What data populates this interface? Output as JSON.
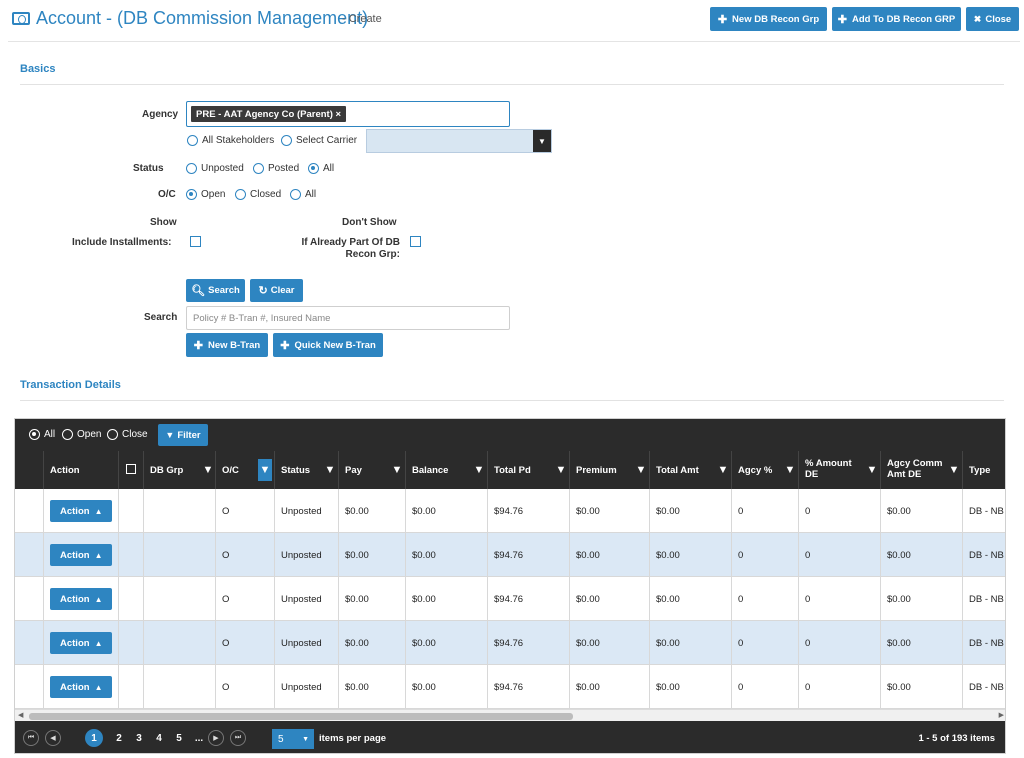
{
  "header": {
    "title": "Account - (DB Commission Management)",
    "subtitle": "- Create",
    "buttons": {
      "new_recon": "New DB Recon Grp",
      "add_recon": "Add To DB Recon GRP",
      "close": "Close"
    }
  },
  "basics": {
    "section_title": "Basics",
    "agency_label": "Agency",
    "agency_tag": "PRE - AAT Agency Co (Parent) ×",
    "stakeholder_options": [
      "All Stakeholders",
      "Select Carrier"
    ],
    "stakeholder_selected": "All Stakeholders",
    "carrier_value": "",
    "status_label": "Status",
    "status_options": [
      "Unposted",
      "Posted",
      "All"
    ],
    "status_selected": "All",
    "oc_label": "O/C",
    "oc_options": [
      "Open",
      "Closed",
      "All"
    ],
    "oc_selected": "Open",
    "show_label": "Show",
    "dont_show_label": "Don't Show",
    "include_installments": "Include Installments:",
    "already_part": "If Already Part Of DB Recon Grp:",
    "search_btn": "Search",
    "clear_btn": "Clear",
    "search_label": "Search",
    "search_placeholder": "Policy # B-Tran #, Insured Name",
    "new_btran": "New B-Tran",
    "quick_new_btran": "Quick New B-Tran"
  },
  "transactions": {
    "section_title": "Transaction Details",
    "toolbar": {
      "options": [
        "All",
        "Open",
        "Close"
      ],
      "selected": "All",
      "filter_btn": "Filter"
    },
    "columns": [
      "Action",
      "DB Grp",
      "O/C",
      "Status",
      "Pay",
      "Balance",
      "Total Pd",
      "Premium",
      "Total Amt",
      "Agcy %",
      "% Amount DE",
      "Agcy Comm Amt DE",
      "Type"
    ],
    "action_label": "Action",
    "rows": [
      {
        "db_grp": "",
        "oc": "O",
        "status": "Unposted",
        "pay": "$0.00",
        "balance": "$0.00",
        "total_pd": "$94.76",
        "premium": "$0.00",
        "total_amt": "$0.00",
        "agcy_pct": "0",
        "pct_amount_de": "0",
        "agcy_comm_amt_de": "$0.00",
        "type": "DB - NB"
      },
      {
        "db_grp": "",
        "oc": "O",
        "status": "Unposted",
        "pay": "$0.00",
        "balance": "$0.00",
        "total_pd": "$94.76",
        "premium": "$0.00",
        "total_amt": "$0.00",
        "agcy_pct": "0",
        "pct_amount_de": "0",
        "agcy_comm_amt_de": "$0.00",
        "type": "DB - NB"
      },
      {
        "db_grp": "",
        "oc": "O",
        "status": "Unposted",
        "pay": "$0.00",
        "balance": "$0.00",
        "total_pd": "$94.76",
        "premium": "$0.00",
        "total_amt": "$0.00",
        "agcy_pct": "0",
        "pct_amount_de": "0",
        "agcy_comm_amt_de": "$0.00",
        "type": "DB - NB"
      },
      {
        "db_grp": "",
        "oc": "O",
        "status": "Unposted",
        "pay": "$0.00",
        "balance": "$0.00",
        "total_pd": "$94.76",
        "premium": "$0.00",
        "total_amt": "$0.00",
        "agcy_pct": "0",
        "pct_amount_de": "0",
        "agcy_comm_amt_de": "$0.00",
        "type": "DB - NB"
      },
      {
        "db_grp": "",
        "oc": "O",
        "status": "Unposted",
        "pay": "$0.00",
        "balance": "$0.00",
        "total_pd": "$94.76",
        "premium": "$0.00",
        "total_amt": "$0.00",
        "agcy_pct": "0",
        "pct_amount_de": "0",
        "agcy_comm_amt_de": "$0.00",
        "type": "DB - NB"
      }
    ],
    "pager": {
      "pages": [
        "1",
        "2",
        "3",
        "4",
        "5",
        "..."
      ],
      "current_page": "1",
      "page_size": "5",
      "page_size_label": "items per page",
      "summary": "1 - 5 of 193 items"
    }
  },
  "colors": {
    "accent": "#2e85c1",
    "dark": "#2b2b2b",
    "row_alt": "#dbe8f5"
  }
}
